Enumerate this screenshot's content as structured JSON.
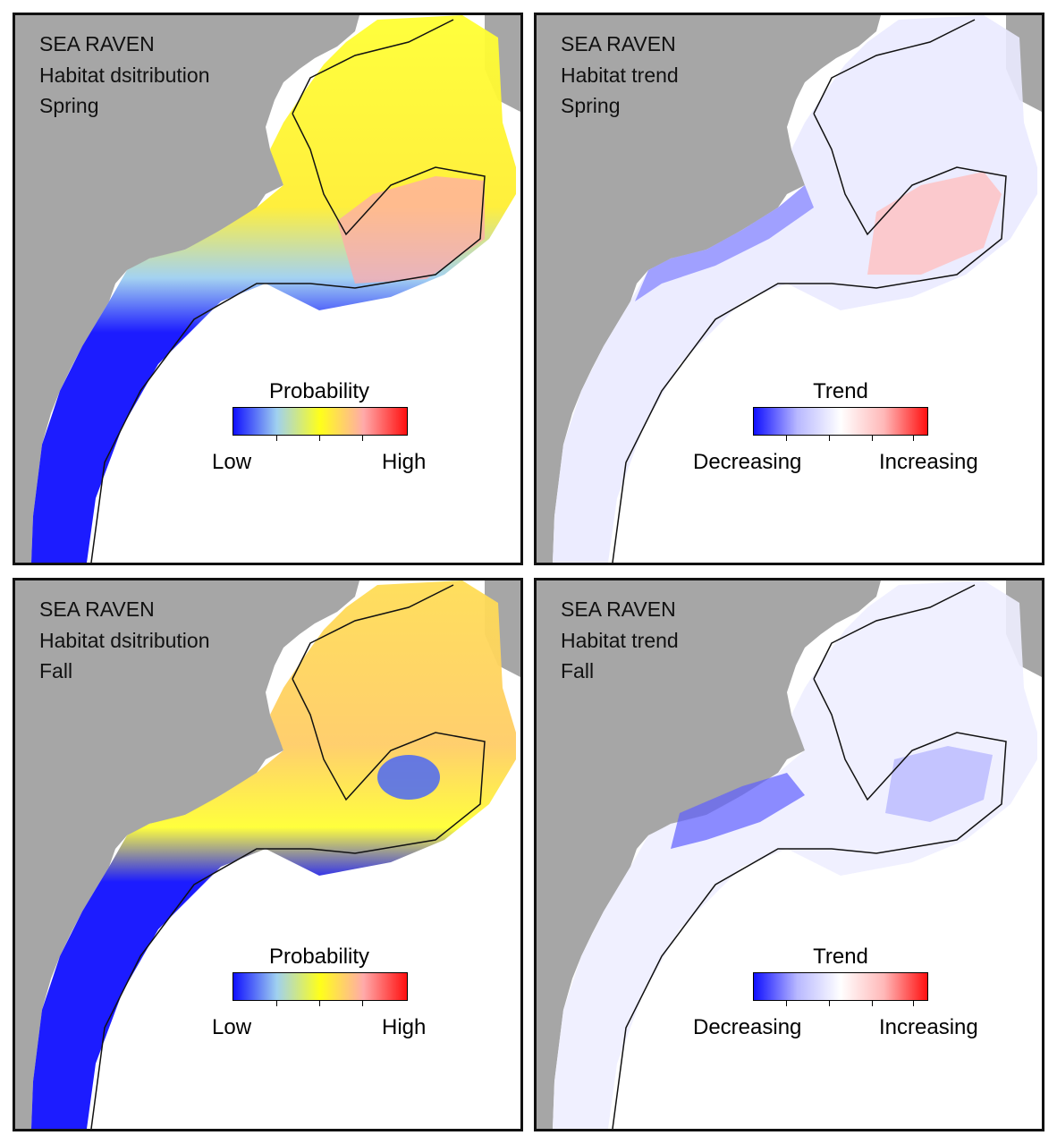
{
  "panels": [
    {
      "line1": "SEA RAVEN",
      "line2": "Habitat dsitribution",
      "line3": "Spring",
      "legend": {
        "title": "Probability",
        "low": "Low",
        "high": "High"
      },
      "colors": [
        "#1010ff",
        "#9fd0f0",
        "#ffff1a",
        "#ffaaaa",
        "#ff1010"
      ]
    },
    {
      "line1": "SEA RAVEN",
      "line2": "Habitat trend",
      "line3": "Spring",
      "legend": {
        "title": "Trend",
        "low": "Decreasing",
        "high": "Increasing"
      },
      "colors": [
        "#1010ff",
        "#b8b8ff",
        "#ffffff",
        "#ffb8b8",
        "#ff1010"
      ]
    },
    {
      "line1": "SEA RAVEN",
      "line2": "Habitat dsitribution",
      "line3": "Fall",
      "legend": {
        "title": "Probability",
        "low": "Low",
        "high": "High"
      },
      "colors": [
        "#1010ff",
        "#9fd0f0",
        "#ffff1a",
        "#ffaaaa",
        "#ff1010"
      ]
    },
    {
      "line1": "SEA RAVEN",
      "line2": "Habitat trend",
      "line3": "Fall",
      "legend": {
        "title": "Trend",
        "low": "Decreasing",
        "high": "Increasing"
      },
      "colors": [
        "#1010ff",
        "#b8b8ff",
        "#ffffff",
        "#ffb8b8",
        "#ff1010"
      ]
    }
  ],
  "map_colors": {
    "land": "#a6a6a6",
    "water": "#ffffff",
    "coast": "#000000"
  }
}
